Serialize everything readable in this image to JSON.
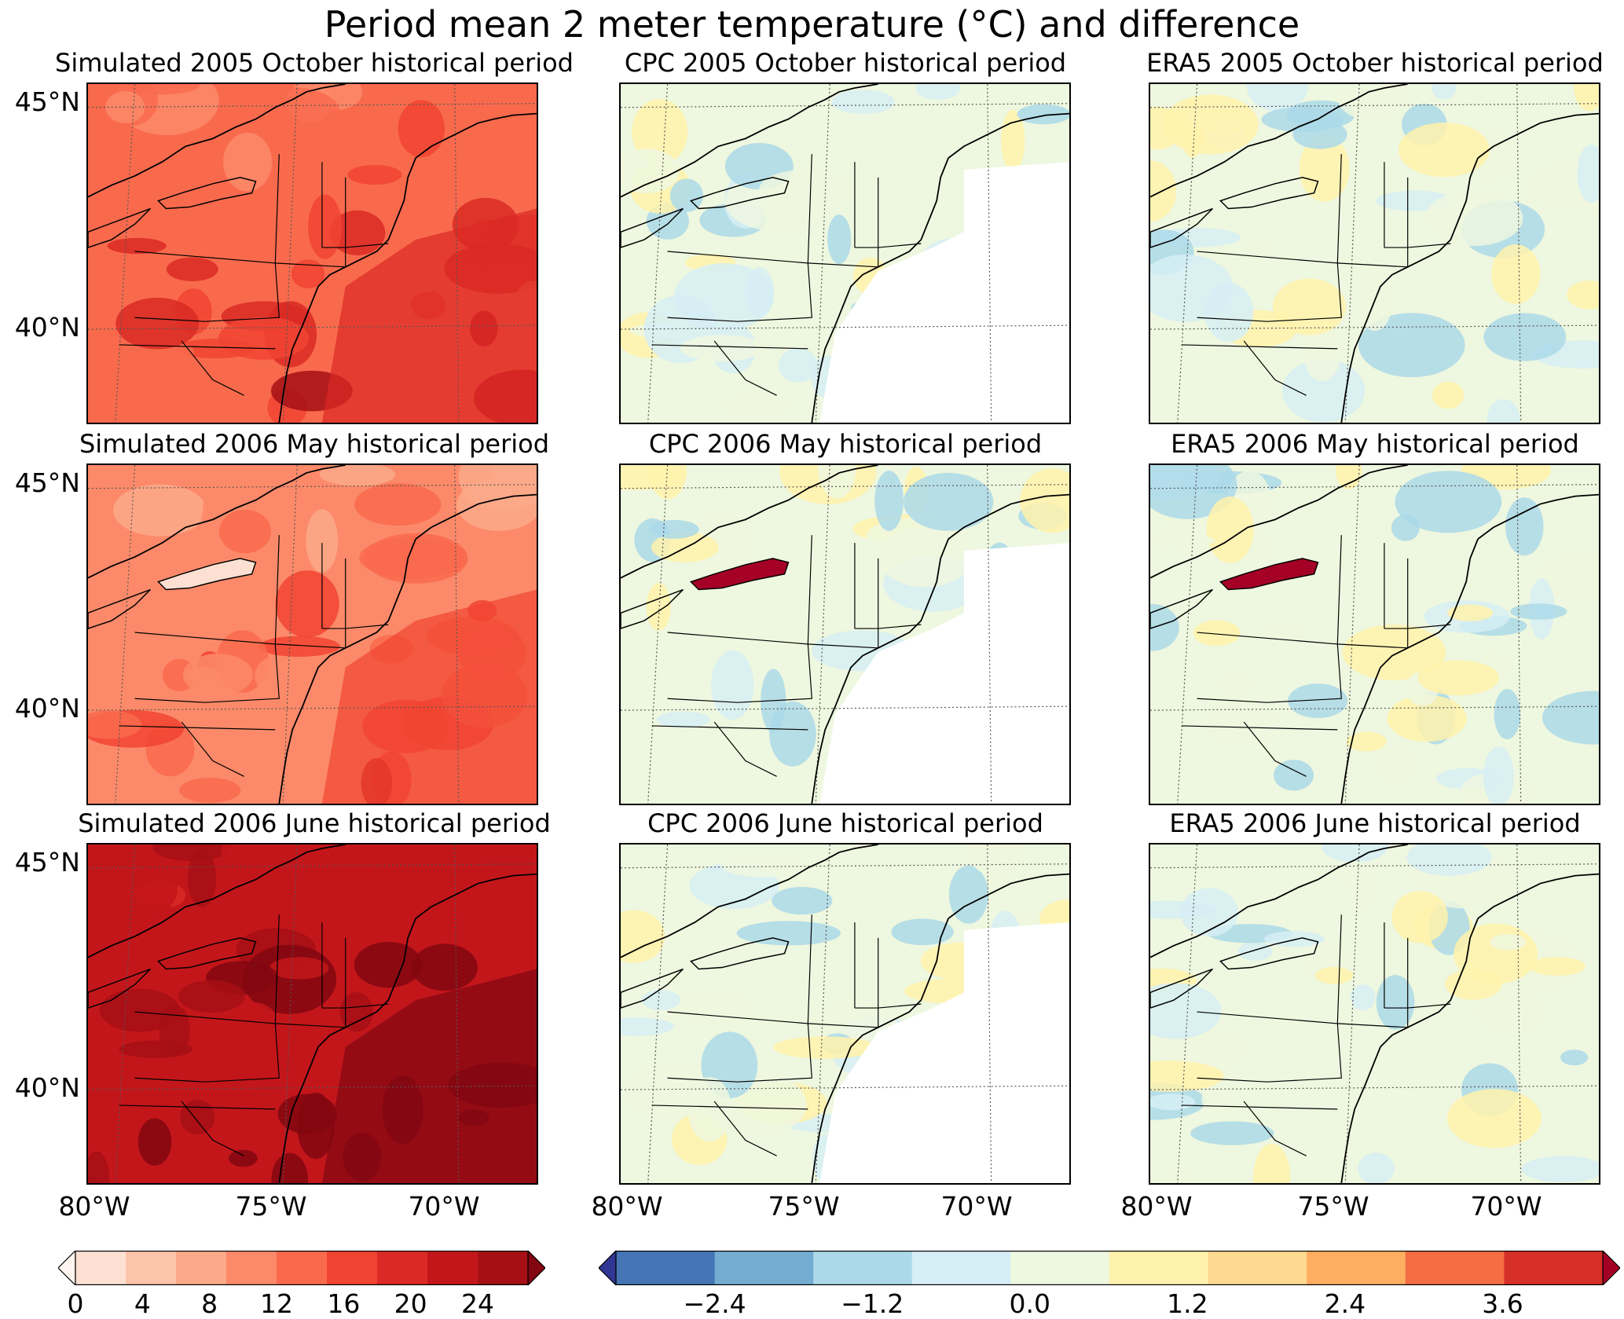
{
  "suptitle": "Period mean 2 meter temperature (°C) and difference",
  "panels": [
    {
      "title": "Simulated 2005 October historical period",
      "type": "abs"
    },
    {
      "title": "CPC 2005 October historical period",
      "type": "diff"
    },
    {
      "title": "ERA5 2005 October historical period",
      "type": "diff"
    },
    {
      "title": "Simulated 2006 May historical period",
      "type": "abs"
    },
    {
      "title": "CPC 2006 May historical period",
      "type": "diff"
    },
    {
      "title": "ERA5 2006 May historical period",
      "type": "diff"
    },
    {
      "title": "Simulated 2006 June historical period",
      "type": "abs"
    },
    {
      "title": "CPC 2006 June historical period",
      "type": "diff"
    },
    {
      "title": "ERA5 2006 June historical period",
      "type": "diff"
    }
  ],
  "lat_labels": [
    "45°N",
    "40°N"
  ],
  "lon_labels": [
    "80°W",
    "75°W",
    "70°W"
  ],
  "colorbar_abs": {
    "ticks": [
      "0",
      "4",
      "8",
      "12",
      "16",
      "20",
      "24"
    ],
    "colors": [
      "#fff5f0",
      "#fee0d2",
      "#fcc5ab",
      "#fca98a",
      "#fc8a6a",
      "#f96a4d",
      "#f14432",
      "#db2a25",
      "#c3161b",
      "#a60f15",
      "#820711"
    ]
  },
  "colorbar_diff": {
    "ticks": [
      "−2.4",
      "−1.2",
      "0.0",
      "1.2",
      "2.4",
      "3.6"
    ],
    "colors": [
      "#313695",
      "#4575b4",
      "#74add1",
      "#abd9e9",
      "#d6eef5",
      "#eef7df",
      "#fff2ac",
      "#fed98f",
      "#fdae61",
      "#f46d43",
      "#d73027",
      "#a50026"
    ]
  }
}
